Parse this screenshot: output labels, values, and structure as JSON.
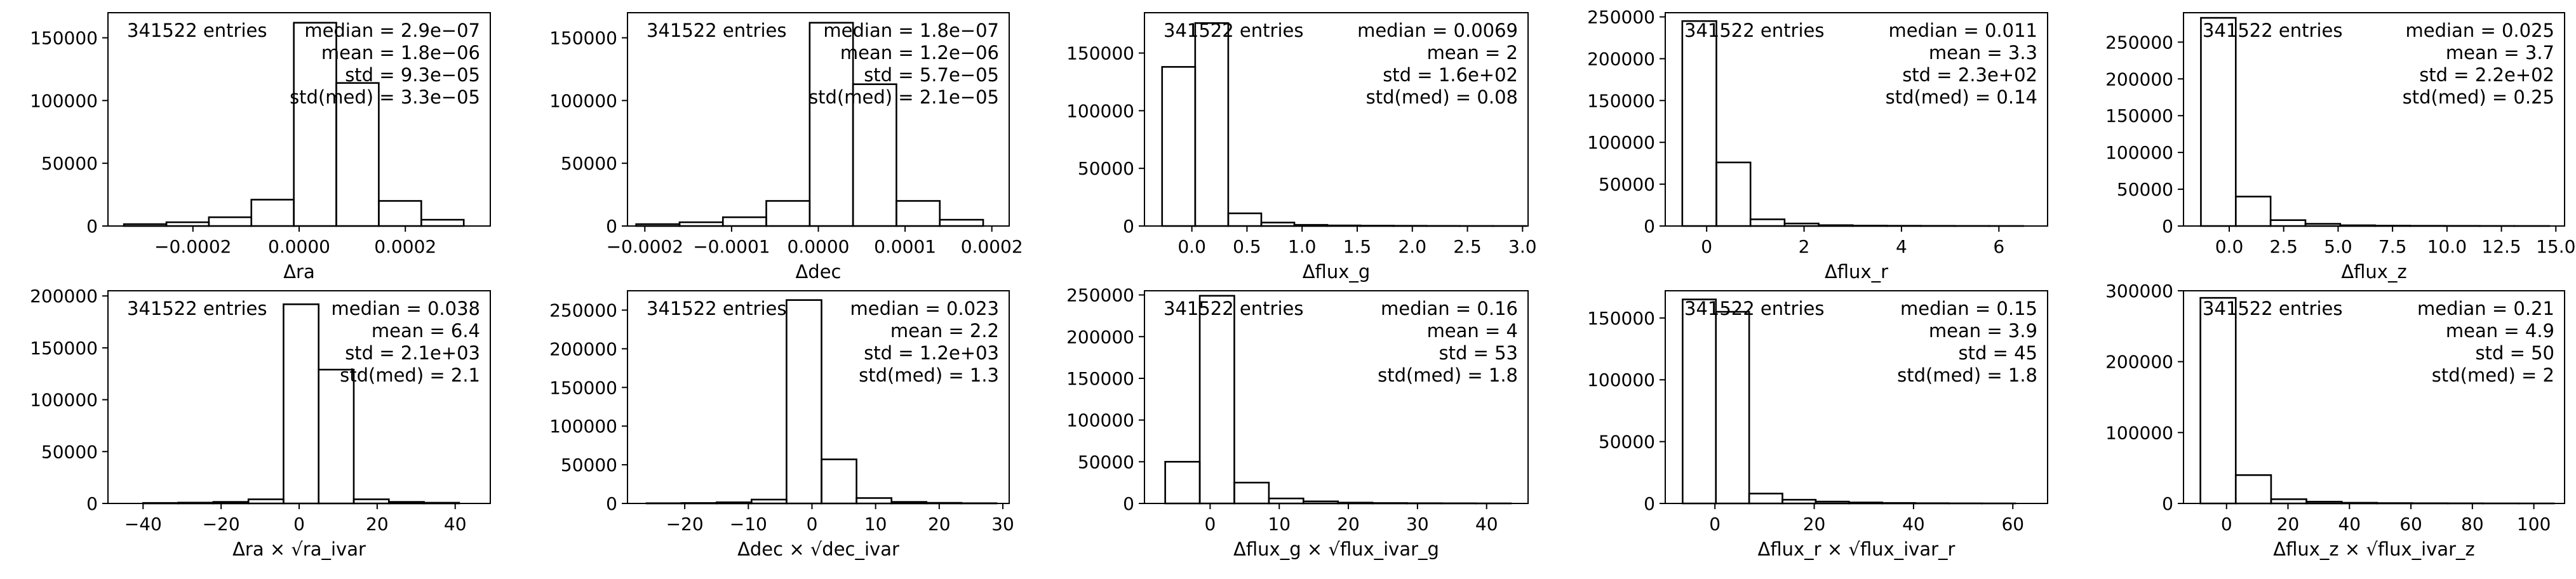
{
  "chart_data": [
    {
      "type": "histogram",
      "xlabel": "Δra",
      "xticks": [
        -0.0002,
        0.0,
        0.0002
      ],
      "xtick_labels": [
        "−0.0002",
        "0.0000",
        "0.0002"
      ],
      "xlim": [
        -0.00036,
        0.00036
      ],
      "ylim": [
        0,
        170000
      ],
      "yticks": [
        0,
        50000,
        100000,
        150000
      ],
      "yticklabels": [
        "0",
        "50000",
        "100000",
        "150000"
      ],
      "bin_edges": [
        -0.00033,
        -0.00025,
        -0.00017,
        -9e-05,
        -1e-05,
        7e-05,
        0.00015,
        0.00023,
        0.00031
      ],
      "counts": [
        1500,
        3000,
        7000,
        21000,
        162000,
        114000,
        20000,
        5000,
        2000
      ],
      "entries_text": "341522 entries",
      "stats": [
        "median = 2.9e−07",
        "mean = 1.8e−06",
        "std = 9.3e−05",
        "std(med) = 3.3e−05"
      ]
    },
    {
      "type": "histogram",
      "xlabel": "Δdec",
      "xticks": [
        -0.0002,
        -0.0001,
        0.0,
        0.0001,
        0.0002
      ],
      "xtick_labels": [
        "−0.0002",
        "−0.0001",
        "0.0000",
        "0.0001",
        "0.0002"
      ],
      "xlim": [
        -0.00022,
        0.00022
      ],
      "ylim": [
        0,
        170000
      ],
      "yticks": [
        0,
        50000,
        100000,
        150000
      ],
      "yticklabels": [
        "0",
        "50000",
        "100000",
        "150000"
      ],
      "bin_edges": [
        -0.00021,
        -0.00016,
        -0.00011,
        -6e-05,
        -1e-05,
        4e-05,
        9e-05,
        0.00014,
        0.00019
      ],
      "counts": [
        1500,
        3000,
        7000,
        20000,
        162000,
        113000,
        20000,
        5000,
        2000
      ],
      "entries_text": "341522 entries",
      "stats": [
        "median = 1.8e−07",
        "mean = 1.2e−06",
        "std = 5.7e−05",
        "std(med) = 2.1e−05"
      ]
    },
    {
      "type": "histogram",
      "xlabel": "Δflux_g",
      "xticks": [
        0.0,
        0.5,
        1.0,
        1.5,
        2.0,
        2.5,
        3.0
      ],
      "xtick_labels": [
        "0.0",
        "0.5",
        "1.0",
        "1.5",
        "2.0",
        "2.5",
        "3.0"
      ],
      "xlim": [
        -0.43,
        3.05
      ],
      "ylim": [
        0,
        185000
      ],
      "yticks": [
        0,
        50000,
        100000,
        150000
      ],
      "yticklabels": [
        "0",
        "50000",
        "100000",
        "150000"
      ],
      "bin_edges": [
        -0.27,
        0.03,
        0.33,
        0.63,
        0.93,
        1.23,
        1.53,
        1.83,
        2.13,
        2.43,
        2.73,
        3.03
      ],
      "counts": [
        138000,
        176000,
        11000,
        3000,
        1000,
        500,
        300,
        200,
        100,
        50,
        30
      ],
      "entries_text": "341522 entries",
      "stats": [
        "median = 0.0069",
        "mean = 2",
        "std = 1.6e+02",
        "std(med) = 0.08"
      ]
    },
    {
      "type": "histogram",
      "xlabel": "Δflux_r",
      "xticks": [
        0,
        2,
        4,
        6
      ],
      "xtick_labels": [
        "0",
        "2",
        "4",
        "6"
      ],
      "xlim": [
        -0.85,
        7.0
      ],
      "ylim": [
        0,
        255000
      ],
      "yticks": [
        0,
        50000,
        100000,
        150000,
        200000,
        250000
      ],
      "yticklabels": [
        "0",
        "50000",
        "100000",
        "150000",
        "200000",
        "250000"
      ],
      "bin_edges": [
        -0.5,
        0.2,
        0.9,
        1.6,
        2.3,
        3.0,
        3.7,
        4.4,
        5.1,
        5.8,
        6.5
      ],
      "counts": [
        245000,
        76000,
        8000,
        3000,
        1000,
        500,
        300,
        200,
        100,
        50
      ],
      "entries_text": "341522 entries",
      "stats": [
        "median = 0.011",
        "mean = 3.3",
        "std = 2.3e+02",
        "std(med) = 0.14"
      ]
    },
    {
      "type": "histogram",
      "xlabel": "Δflux_z",
      "xticks": [
        0.0,
        2.5,
        5.0,
        7.5,
        10.0,
        12.5,
        15.0
      ],
      "xtick_labels": [
        "0.0",
        "2.5",
        "5.0",
        "7.5",
        "10.0",
        "12.5",
        "15.0"
      ],
      "xlim": [
        -2.1,
        15.4
      ],
      "ylim": [
        0,
        290000
      ],
      "yticks": [
        0,
        50000,
        100000,
        150000,
        200000,
        250000
      ],
      "yticklabels": [
        "0",
        "50000",
        "100000",
        "150000",
        "200000",
        "250000"
      ],
      "bin_edges": [
        -1.3,
        0.3,
        1.9,
        3.5,
        5.1,
        6.7,
        8.3,
        9.9,
        11.5,
        13.1,
        14.7
      ],
      "counts": [
        283000,
        40000,
        8000,
        3000,
        1000,
        500,
        300,
        200,
        100,
        50
      ],
      "entries_text": "341522 entries",
      "stats": [
        "median = 0.025",
        "mean = 3.7",
        "std = 2.2e+02",
        "std(med) = 0.25"
      ]
    },
    {
      "type": "histogram",
      "xlabel": "Δra × √ra_ivar",
      "xticks": [
        -40,
        -20,
        0,
        20,
        40
      ],
      "xtick_labels": [
        "−40",
        "−20",
        "0",
        "20",
        "40"
      ],
      "xlim": [
        -49,
        49
      ],
      "ylim": [
        0,
        205000
      ],
      "yticks": [
        0,
        50000,
        100000,
        150000,
        200000
      ],
      "yticklabels": [
        "0",
        "50000",
        "100000",
        "150000",
        "200000"
      ],
      "bin_edges": [
        -40,
        -31,
        -22,
        -13,
        -4,
        5,
        14,
        23,
        32,
        41
      ],
      "counts": [
        500,
        800,
        1500,
        4000,
        192000,
        129000,
        4000,
        1500,
        700
      ],
      "entries_text": "341522 entries",
      "stats": [
        "median = 0.038",
        "mean = 6.4",
        "std = 2.1e+03",
        "std(med) = 2.1"
      ]
    },
    {
      "type": "histogram",
      "xlabel": "Δdec × √dec_ivar",
      "xticks": [
        -20,
        -10,
        0,
        10,
        20,
        30
      ],
      "xtick_labels": [
        "−20",
        "−10",
        "0",
        "10",
        "20",
        "30"
      ],
      "xlim": [
        -29,
        31
      ],
      "ylim": [
        0,
        275000
      ],
      "yticks": [
        0,
        50000,
        100000,
        150000,
        200000,
        250000
      ],
      "yticklabels": [
        "0",
        "50000",
        "100000",
        "150000",
        "200000",
        "250000"
      ],
      "bin_edges": [
        -26,
        -20.5,
        -15,
        -9.5,
        -4,
        1.5,
        7,
        12.5,
        18,
        23.5,
        29
      ],
      "counts": [
        300,
        600,
        1500,
        5000,
        263000,
        57000,
        7000,
        2000,
        800,
        300
      ],
      "entries_text": "341522 entries",
      "stats": [
        "median = 0.023",
        "mean = 2.2",
        "std = 1.2e+03",
        "std(med) = 1.3"
      ]
    },
    {
      "type": "histogram",
      "xlabel": "Δflux_g × √flux_ivar_g",
      "xticks": [
        0,
        10,
        20,
        30,
        40
      ],
      "xtick_labels": [
        "0",
        "10",
        "20",
        "30",
        "40"
      ],
      "xlim": [
        -9.5,
        46
      ],
      "ylim": [
        0,
        255000
      ],
      "yticks": [
        0,
        50000,
        100000,
        150000,
        200000,
        250000
      ],
      "yticklabels": [
        "0",
        "50000",
        "100000",
        "150000",
        "200000",
        "250000"
      ],
      "bin_edges": [
        -6.5,
        -1.5,
        3.5,
        8.5,
        13.5,
        18.5,
        23.5,
        28.5,
        33.5,
        38.5,
        43.5
      ],
      "counts": [
        50000,
        249000,
        25000,
        6000,
        2500,
        1000,
        500,
        300,
        200,
        100
      ],
      "entries_text": "341522 entries",
      "stats": [
        "median = 0.16",
        "mean = 4",
        "std = 53",
        "std(med) = 1.8"
      ]
    },
    {
      "type": "histogram",
      "xlabel": "Δflux_r × √flux_ivar_r",
      "xticks": [
        0,
        20,
        40,
        60
      ],
      "xtick_labels": [
        "0",
        "20",
        "40",
        "60"
      ],
      "xlim": [
        -10,
        67
      ],
      "ylim": [
        0,
        172000
      ],
      "yticks": [
        0,
        50000,
        100000,
        150000
      ],
      "yticklabels": [
        "0",
        "50000",
        "100000",
        "150000"
      ],
      "bin_edges": [
        -6.5,
        0.2,
        6.9,
        13.6,
        20.3,
        27.0,
        33.7,
        40.4,
        47.1,
        53.8,
        60.5
      ],
      "counts": [
        165000,
        155000,
        8000,
        3000,
        1500,
        800,
        400,
        200,
        100,
        50
      ],
      "entries_text": "341522 entries",
      "stats": [
        "median = 0.15",
        "mean = 3.9",
        "std = 45",
        "std(med) = 1.8"
      ]
    },
    {
      "type": "histogram",
      "xlabel": "Δflux_z × √flux_ivar_z",
      "xticks": [
        0,
        20,
        40,
        60,
        80,
        100
      ],
      "xtick_labels": [
        "0",
        "20",
        "40",
        "60",
        "80",
        "100"
      ],
      "xlim": [
        -14,
        110
      ],
      "ylim": [
        0,
        300000
      ],
      "yticks": [
        0,
        100000,
        200000,
        300000
      ],
      "yticklabels": [
        "0",
        "100000",
        "200000",
        "300000"
      ],
      "bin_edges": [
        -8.5,
        3,
        14.5,
        26,
        37.5,
        49,
        60.5,
        72,
        83.5,
        95,
        106.5
      ],
      "counts": [
        290000,
        40000,
        6000,
        2500,
        1000,
        500,
        300,
        200,
        100,
        50
      ],
      "entries_text": "341522 entries",
      "stats": [
        "median = 0.21",
        "mean = 4.9",
        "std = 50",
        "std(med) = 2"
      ]
    }
  ]
}
